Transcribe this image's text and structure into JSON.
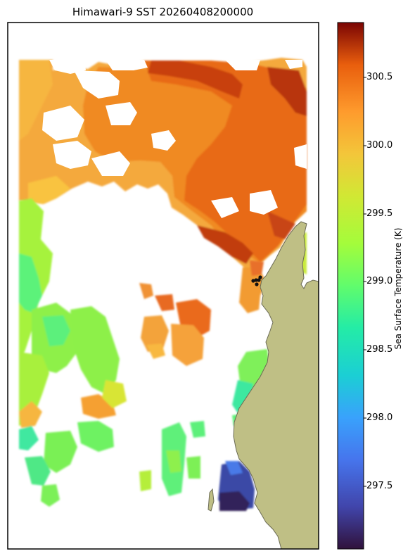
{
  "title": "Himawari-9 SST 20260408200000",
  "colorbar": {
    "label": "Sea Surface Temperature (K)",
    "ticks": [
      "297.5",
      "298.0",
      "298.5",
      "299.0",
      "299.5",
      "300.0",
      "300.5"
    ],
    "min": 297.05,
    "max": 300.9,
    "colormap": "turbo"
  },
  "colors": {
    "land": "#bfbf85",
    "coast": "#6b6b55",
    "frame": "#000000",
    "background": "#ffffff"
  },
  "markers": {
    "count": 5,
    "color": "#111111"
  }
}
